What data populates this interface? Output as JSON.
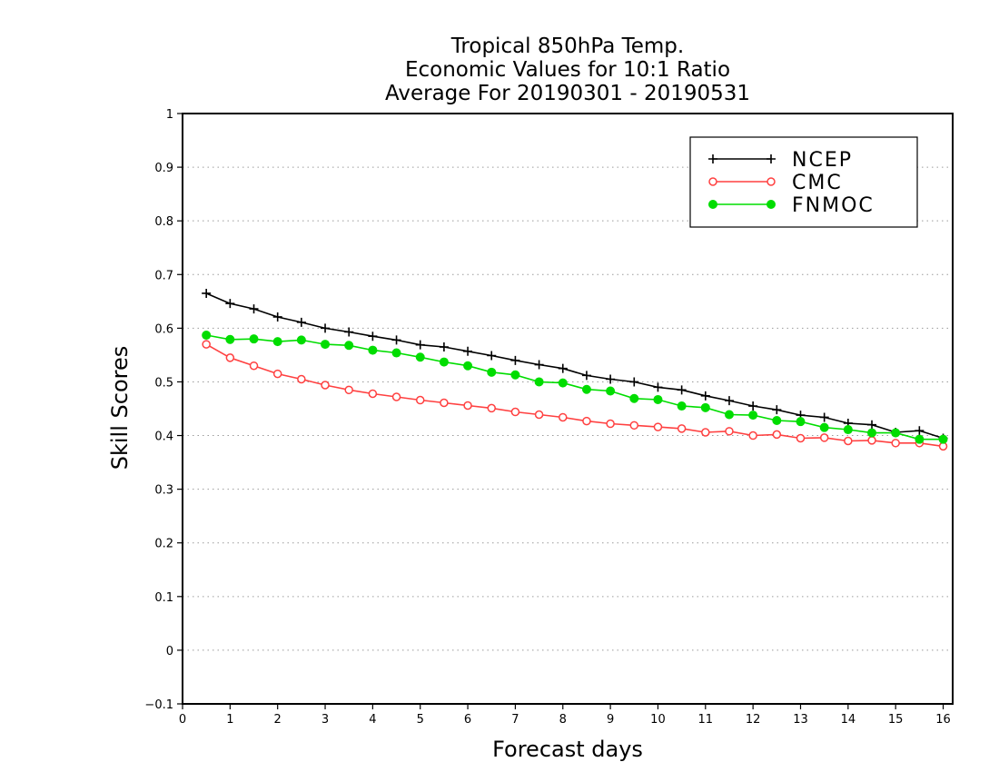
{
  "chart_data": {
    "type": "line",
    "title_lines": [
      "Tropical 850hPa Temp.",
      "Economic Values for 10:1 Ratio",
      "Average For 20190301 - 20190531"
    ],
    "xlabel": "Forecast days",
    "ylabel": "Skill Scores",
    "xlim": [
      0,
      16.2
    ],
    "ylim": [
      -0.1,
      1
    ],
    "xticks": [
      0,
      1,
      2,
      3,
      4,
      5,
      6,
      7,
      8,
      9,
      10,
      11,
      12,
      13,
      14,
      15,
      16
    ],
    "xtick_labels": [
      "0",
      "1",
      "2",
      "3",
      "4",
      "5",
      "6",
      "7",
      "8",
      "9",
      "10",
      "11",
      "12",
      "13",
      "14",
      "15",
      "16"
    ],
    "yticks": [
      -0.1,
      0,
      0.1,
      0.2,
      0.3,
      0.4,
      0.5,
      0.6,
      0.7,
      0.8,
      0.9,
      1
    ],
    "ytick_labels": [
      "−0.1",
      "0",
      "0.1",
      "0.2",
      "0.3",
      "0.4",
      "0.5",
      "0.6",
      "0.7",
      "0.8",
      "0.9",
      "1"
    ],
    "grid": "horizontal-dotted",
    "legend_position": "top-right",
    "x": [
      0.5,
      1,
      1.5,
      2,
      2.5,
      3,
      3.5,
      4,
      4.5,
      5,
      5.5,
      6,
      6.5,
      7,
      7.5,
      8,
      8.5,
      9,
      9.5,
      10,
      10.5,
      11,
      11.5,
      12,
      12.5,
      13,
      13.5,
      14,
      14.5,
      15,
      15.5,
      16
    ],
    "series": [
      {
        "name": "NCEP",
        "color": "#000000",
        "marker": "plus",
        "values": [
          0.665,
          0.646,
          0.636,
          0.621,
          0.611,
          0.6,
          0.593,
          0.585,
          0.578,
          0.569,
          0.565,
          0.557,
          0.549,
          0.54,
          0.532,
          0.525,
          0.512,
          0.505,
          0.5,
          0.49,
          0.485,
          0.474,
          0.465,
          0.455,
          0.448,
          0.438,
          0.434,
          0.423,
          0.42,
          0.406,
          0.409,
          0.395
        ]
      },
      {
        "name": "CMC",
        "color": "#ff4040",
        "marker": "open-circle",
        "values": [
          0.57,
          0.545,
          0.53,
          0.515,
          0.505,
          0.494,
          0.485,
          0.478,
          0.472,
          0.466,
          0.461,
          0.456,
          0.451,
          0.444,
          0.439,
          0.434,
          0.427,
          0.422,
          0.419,
          0.416,
          0.413,
          0.406,
          0.408,
          0.4,
          0.402,
          0.395,
          0.396,
          0.39,
          0.391,
          0.386,
          0.386,
          0.38
        ]
      },
      {
        "name": "FNMOC",
        "color": "#00dd00",
        "marker": "filled-circle",
        "values": [
          0.587,
          0.579,
          0.58,
          0.575,
          0.578,
          0.57,
          0.568,
          0.559,
          0.554,
          0.546,
          0.537,
          0.53,
          0.518,
          0.513,
          0.5,
          0.498,
          0.486,
          0.483,
          0.469,
          0.467,
          0.455,
          0.452,
          0.439,
          0.438,
          0.428,
          0.426,
          0.415,
          0.411,
          0.405,
          0.405,
          0.393,
          0.393
        ]
      }
    ]
  }
}
